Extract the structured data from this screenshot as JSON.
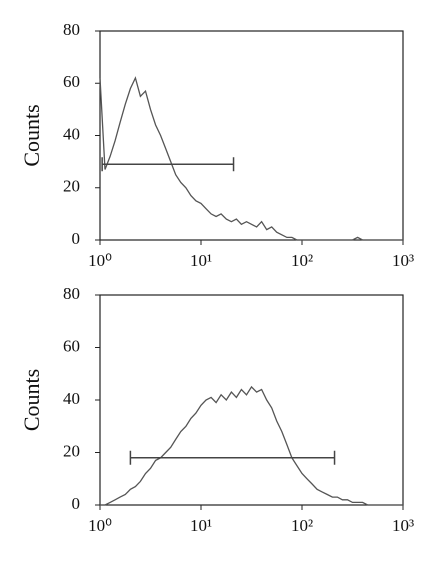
{
  "chart_data": [
    {
      "type": "line",
      "ylabel": "Counts",
      "log_x": true,
      "xlim": [
        1,
        1000
      ],
      "ylim": [
        0,
        80
      ],
      "yticks": [
        0,
        20,
        40,
        60,
        80
      ],
      "xticks": [
        {
          "value": 1,
          "label": "10⁰"
        },
        {
          "value": 10,
          "label": "10¹"
        },
        {
          "value": 100,
          "label": "10²"
        },
        {
          "value": 1000,
          "label": "10³"
        }
      ],
      "x": [
        1,
        1.12,
        1.26,
        1.41,
        1.58,
        1.78,
        2,
        2.24,
        2.51,
        2.82,
        3.16,
        3.55,
        3.98,
        4.47,
        5.01,
        5.62,
        6.31,
        7.08,
        7.94,
        8.91,
        10,
        11.2,
        12.6,
        14.1,
        15.8,
        17.8,
        20,
        22.4,
        25.1,
        28.2,
        31.6,
        35.5,
        39.8,
        44.7,
        50.1,
        56.2,
        63.1,
        70.8,
        79.4,
        89.1,
        100,
        112,
        126,
        141,
        158,
        178,
        200,
        224,
        251,
        282,
        316,
        355,
        398,
        447,
        501,
        562,
        631,
        708,
        794,
        891,
        1000
      ],
      "series": [
        {
          "color": "#555555",
          "values": [
            62,
            27,
            32,
            38,
            45,
            52,
            58,
            62,
            55,
            57,
            50,
            44,
            40,
            35,
            30,
            25,
            22,
            20,
            17,
            15,
            14,
            12,
            10,
            9,
            10,
            8,
            7,
            8,
            6,
            7,
            6,
            5,
            7,
            4,
            5,
            3,
            2,
            1,
            1,
            0,
            0,
            0,
            0,
            0,
            0,
            0,
            0,
            0,
            0,
            0,
            0,
            1,
            0,
            0,
            0,
            0,
            0,
            0,
            0,
            0,
            0
          ]
        }
      ],
      "gate": {
        "x": [
          1.05,
          21
        ],
        "y": 29
      }
    },
    {
      "type": "line",
      "ylabel": "Counts",
      "log_x": true,
      "xlim": [
        1,
        1000
      ],
      "ylim": [
        0,
        80
      ],
      "yticks": [
        0,
        20,
        40,
        60,
        80
      ],
      "xticks": [
        {
          "value": 1,
          "label": "10⁰"
        },
        {
          "value": 10,
          "label": "10¹"
        },
        {
          "value": 100,
          "label": "10²"
        },
        {
          "value": 1000,
          "label": "10³"
        }
      ],
      "x": [
        1,
        1.12,
        1.26,
        1.41,
        1.58,
        1.78,
        2,
        2.24,
        2.51,
        2.82,
        3.16,
        3.55,
        3.98,
        4.47,
        5.01,
        5.62,
        6.31,
        7.08,
        7.94,
        8.91,
        10,
        11.2,
        12.6,
        14.1,
        15.8,
        17.8,
        20,
        22.4,
        25.1,
        28.2,
        31.6,
        35.5,
        39.8,
        44.7,
        50.1,
        56.2,
        63.1,
        70.8,
        79.4,
        89.1,
        100,
        112,
        126,
        141,
        158,
        178,
        200,
        224,
        251,
        282,
        316,
        355,
        398,
        447,
        501,
        562,
        631,
        708,
        794,
        891,
        1000
      ],
      "series": [
        {
          "color": "#555555",
          "values": [
            0,
            0,
            1,
            2,
            3,
            4,
            6,
            7,
            9,
            12,
            14,
            17,
            18,
            20,
            22,
            25,
            28,
            30,
            33,
            35,
            38,
            40,
            41,
            39,
            42,
            40,
            43,
            41,
            44,
            42,
            45,
            43,
            44,
            40,
            37,
            32,
            28,
            23,
            18,
            15,
            12,
            10,
            8,
            6,
            5,
            4,
            3,
            3,
            2,
            2,
            1,
            1,
            1,
            0,
            0,
            0,
            0,
            0,
            0,
            0,
            0
          ]
        }
      ],
      "gate": {
        "x": [
          2,
          210
        ],
        "y": 18
      }
    }
  ]
}
